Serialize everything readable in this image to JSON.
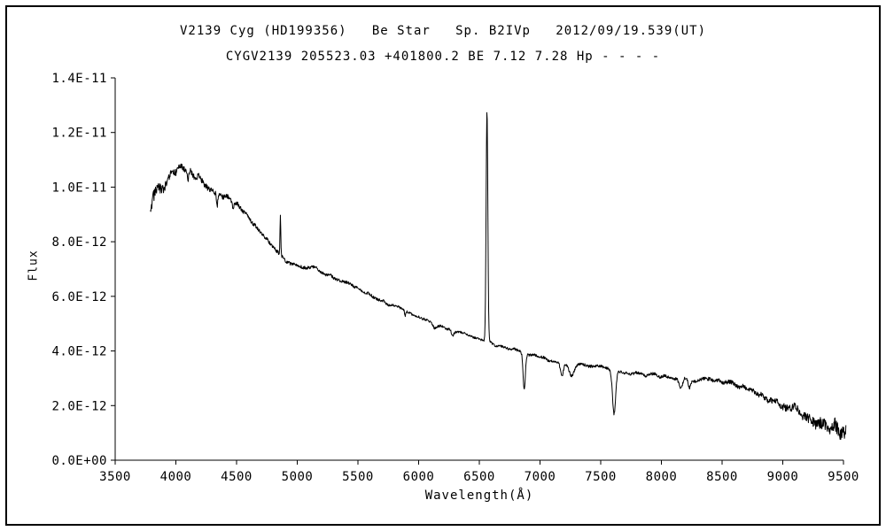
{
  "chart": {
    "title": "V2139 Cyg (HD199356)   Be Star   Sp. B2IVp   2012/09/19.539(UT)",
    "subtitle": "CYGV2139 205523.03 +401800.2 BE 7.12 7.28 Hp - - - -",
    "xlabel": "Wavelength(Å)",
    "ylabel": "Flux"
  },
  "chart_data": {
    "type": "line",
    "title": "V2139 Cyg (HD199356)   Be Star   Sp. B2IVp   2012/09/19.539(UT)",
    "subtitle": "CYGV2139 205523.03 +401800.2 BE 7.12 7.28 Hp - - - -",
    "xlabel": "Wavelength(Å)",
    "ylabel": "Flux",
    "xlim": [
      3500,
      9500
    ],
    "ylim_e12": [
      0,
      14
    ],
    "y_unit_scale": 1e-12,
    "x_ticks": [
      3500,
      4000,
      4500,
      5000,
      5500,
      6000,
      6500,
      7000,
      7500,
      8000,
      8500,
      9000,
      9500
    ],
    "y_ticks_e12": [
      0,
      2,
      4,
      6,
      8,
      10,
      12,
      14
    ],
    "y_tick_labels": [
      "0.0E+00",
      "2.0E-12",
      "4.0E-12",
      "6.0E-12",
      "8.0E-12",
      "1.0E-11",
      "1.2E-11",
      "1.4E-11"
    ],
    "grid": false,
    "legend": false,
    "line_color": "#000000",
    "x_range_data": [
      3790,
      9520
    ],
    "sample_step": 3,
    "noise_seed": 7,
    "continuum_e12": [
      [
        3790,
        9.0
      ],
      [
        3810,
        9.4
      ],
      [
        3840,
        9.9
      ],
      [
        3870,
        10.1
      ],
      [
        3900,
        10.0
      ],
      [
        3930,
        10.3
      ],
      [
        3960,
        10.5
      ],
      [
        4000,
        10.5
      ],
      [
        4040,
        10.7
      ],
      [
        4080,
        10.5
      ],
      [
        4120,
        10.6
      ],
      [
        4160,
        10.4
      ],
      [
        4200,
        10.3
      ],
      [
        4260,
        10.0
      ],
      [
        4320,
        9.9
      ],
      [
        4400,
        9.7
      ],
      [
        4480,
        9.5
      ],
      [
        4520,
        9.3
      ],
      [
        4600,
        8.9
      ],
      [
        4700,
        8.3
      ],
      [
        4800,
        7.8
      ],
      [
        4861,
        7.5
      ],
      [
        4950,
        7.2
      ],
      [
        5050,
        7.0
      ],
      [
        5150,
        7.05
      ],
      [
        5250,
        6.8
      ],
      [
        5350,
        6.6
      ],
      [
        5450,
        6.4
      ],
      [
        5550,
        6.15
      ],
      [
        5650,
        5.95
      ],
      [
        5750,
        5.7
      ],
      [
        5850,
        5.55
      ],
      [
        5950,
        5.35
      ],
      [
        6050,
        5.15
      ],
      [
        6150,
        4.95
      ],
      [
        6250,
        4.8
      ],
      [
        6350,
        4.65
      ],
      [
        6450,
        4.5
      ],
      [
        6563,
        4.35
      ],
      [
        6650,
        4.2
      ],
      [
        6750,
        4.1
      ],
      [
        6850,
        3.95
      ],
      [
        6950,
        3.85
      ],
      [
        7050,
        3.7
      ],
      [
        7150,
        3.6
      ],
      [
        7250,
        3.55
      ],
      [
        7350,
        3.5
      ],
      [
        7450,
        3.45
      ],
      [
        7550,
        3.35
      ],
      [
        7650,
        3.25
      ],
      [
        7750,
        3.2
      ],
      [
        7850,
        3.15
      ],
      [
        7950,
        3.1
      ],
      [
        8050,
        3.05
      ],
      [
        8150,
        3.0
      ],
      [
        8250,
        2.9
      ],
      [
        8350,
        2.95
      ],
      [
        8450,
        2.95
      ],
      [
        8550,
        2.85
      ],
      [
        8650,
        2.7
      ],
      [
        8750,
        2.5
      ],
      [
        8850,
        2.3
      ],
      [
        8950,
        2.15
      ],
      [
        9050,
        2.0
      ],
      [
        9150,
        1.8
      ],
      [
        9250,
        1.55
      ],
      [
        9350,
        1.25
      ],
      [
        9450,
        1.0
      ],
      [
        9520,
        0.85
      ]
    ],
    "emission_lines": [
      {
        "center": 4861,
        "amp_e12": 1.5,
        "sigma": 3
      },
      {
        "center": 6563,
        "amp_e12": 8.45,
        "sigma": 7
      }
    ],
    "absorption_bands": [
      {
        "center": 4101,
        "amp_e12": 0.35,
        "sigma": 5
      },
      {
        "center": 4340,
        "amp_e12": 0.45,
        "sigma": 5
      },
      {
        "center": 4471,
        "amp_e12": 0.25,
        "sigma": 5
      },
      {
        "center": 5890,
        "amp_e12": 0.18,
        "sigma": 6
      },
      {
        "center": 6130,
        "amp_e12": 0.15,
        "sigma": 12
      },
      {
        "center": 6280,
        "amp_e12": 0.22,
        "sigma": 10
      },
      {
        "center": 6870,
        "amp_e12": 1.35,
        "sigma": 9
      },
      {
        "center": 7180,
        "amp_e12": 0.5,
        "sigma": 12
      },
      {
        "center": 7260,
        "amp_e12": 0.5,
        "sigma": 22
      },
      {
        "center": 7610,
        "amp_e12": 1.62,
        "sigma": 13
      },
      {
        "center": 8160,
        "amp_e12": 0.4,
        "sigma": 14
      },
      {
        "center": 8230,
        "amp_e12": 0.25,
        "sigma": 8
      }
    ],
    "noise_amp_e12": [
      [
        3790,
        0.28
      ],
      [
        3860,
        0.22
      ],
      [
        3950,
        0.16
      ],
      [
        4100,
        0.13
      ],
      [
        4300,
        0.11
      ],
      [
        4600,
        0.09
      ],
      [
        5000,
        0.07
      ],
      [
        5600,
        0.06
      ],
      [
        6300,
        0.05
      ],
      [
        6700,
        0.05
      ],
      [
        7100,
        0.06
      ],
      [
        7700,
        0.06
      ],
      [
        8200,
        0.07
      ],
      [
        8600,
        0.09
      ],
      [
        8900,
        0.13
      ],
      [
        9100,
        0.17
      ],
      [
        9300,
        0.24
      ],
      [
        9450,
        0.3
      ],
      [
        9520,
        0.34
      ]
    ]
  }
}
